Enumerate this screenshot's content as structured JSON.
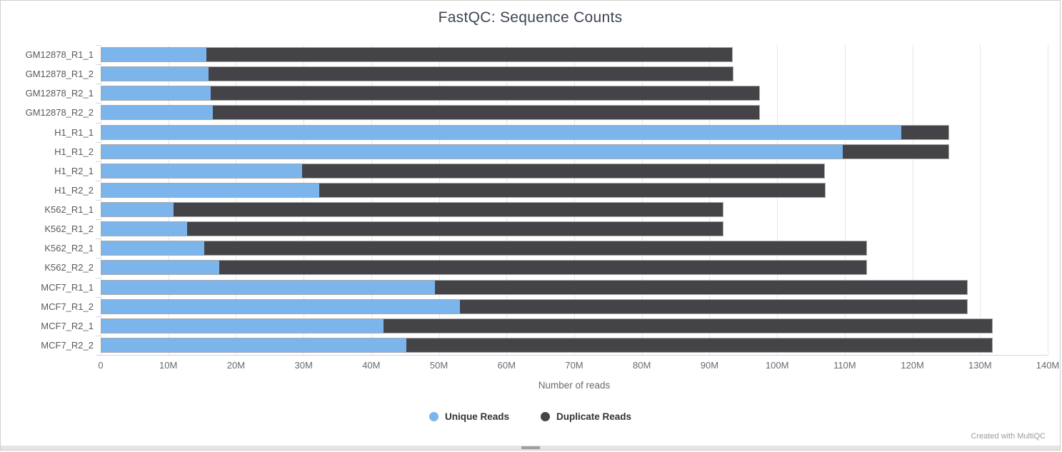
{
  "page": {
    "credit": "Created with MultiQC"
  },
  "chart_data": {
    "type": "bar",
    "orientation": "horizontal",
    "stacked": true,
    "title": "FastQC: Sequence Counts",
    "xlabel": "Number of reads",
    "ylabel": "",
    "grid": true,
    "legend_position": "bottom",
    "xlim": [
      0,
      140000000
    ],
    "x_ticks": [
      {
        "v": 0,
        "label": "0"
      },
      {
        "v": 10000000,
        "label": "10M"
      },
      {
        "v": 20000000,
        "label": "20M"
      },
      {
        "v": 30000000,
        "label": "30M"
      },
      {
        "v": 40000000,
        "label": "40M"
      },
      {
        "v": 50000000,
        "label": "50M"
      },
      {
        "v": 60000000,
        "label": "60M"
      },
      {
        "v": 70000000,
        "label": "70M"
      },
      {
        "v": 80000000,
        "label": "80M"
      },
      {
        "v": 90000000,
        "label": "90M"
      },
      {
        "v": 100000000,
        "label": "100M"
      },
      {
        "v": 110000000,
        "label": "110M"
      },
      {
        "v": 120000000,
        "label": "120M"
      },
      {
        "v": 130000000,
        "label": "130M"
      },
      {
        "v": 140000000,
        "label": "140M"
      }
    ],
    "categories": [
      "GM12878_R1_1",
      "GM12878_R1_2",
      "GM12878_R2_1",
      "GM12878_R2_2",
      "H1_R1_1",
      "H1_R1_2",
      "H1_R2_1",
      "H1_R2_2",
      "K562_R1_1",
      "K562_R1_2",
      "K562_R2_1",
      "K562_R2_2",
      "MCF7_R1_1",
      "MCF7_R1_2",
      "MCF7_R2_1",
      "MCF7_R2_2"
    ],
    "series": [
      {
        "name": "Unique Reads",
        "color": "#7cb5ec",
        "values": [
          15600000,
          15900000,
          16200000,
          16500000,
          118500000,
          109800000,
          29700000,
          32300000,
          10700000,
          12700000,
          15200000,
          17500000,
          49400000,
          53100000,
          41800000,
          45200000
        ]
      },
      {
        "name": "Duplicate Reads",
        "color": "#434348",
        "values": [
          77800000,
          77600000,
          81300000,
          81000000,
          6900000,
          15600000,
          77400000,
          74900000,
          81400000,
          79400000,
          98100000,
          95800000,
          78800000,
          75100000,
          90100000,
          86700000
        ]
      }
    ]
  }
}
